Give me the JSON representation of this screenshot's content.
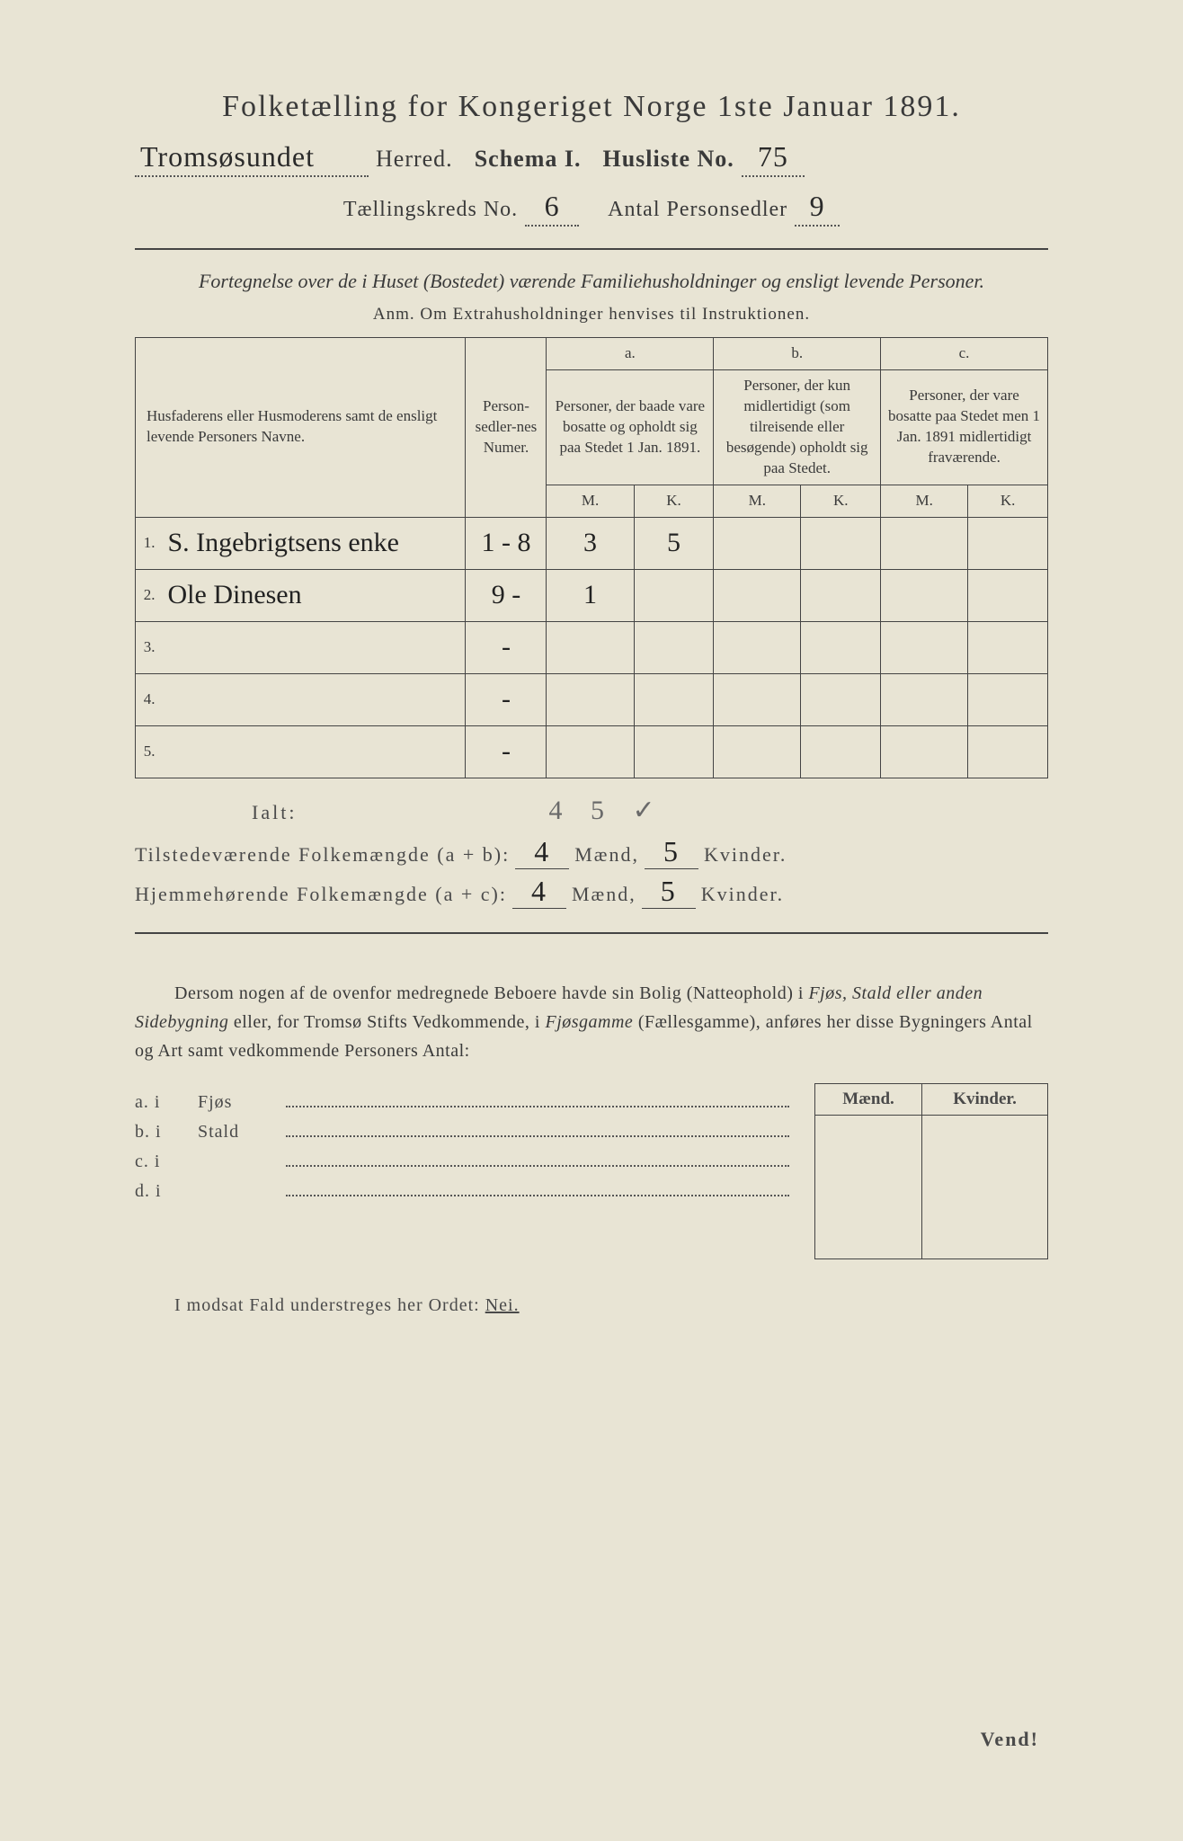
{
  "title": "Folketælling for Kongeriget Norge 1ste Januar 1891.",
  "header": {
    "herred_value": "Tromsøsundet",
    "herred_label": "Herred.",
    "schema_label": "Schema I.",
    "husliste_label": "Husliste No.",
    "husliste_value": "75",
    "taellingskreds_label": "Tællingskreds No.",
    "taellingskreds_value": "6",
    "antal_label": "Antal Personsedler",
    "antal_value": "9"
  },
  "subhead": "Fortegnelse over de i Huset (Bostedet) værende Familiehusholdninger og ensligt levende Personer.",
  "anm": "Anm.  Om Extrahusholdninger henvises til Instruktionen.",
  "table": {
    "col_name": "Husfaderens eller Husmoderens samt de ensligt levende Personers Navne.",
    "col_num": "Person-sedler-nes Numer.",
    "col_a_label": "a.",
    "col_a": "Personer, der baade vare bosatte og opholdt sig paa Stedet 1 Jan. 1891.",
    "col_b_label": "b.",
    "col_b": "Personer, der kun midlertidigt (som tilreisende eller besøgende) opholdt sig paa Stedet.",
    "col_c_label": "c.",
    "col_c": "Personer, der vare bosatte paa Stedet men 1 Jan. 1891 midlertidigt fraværende.",
    "mk_m": "M.",
    "mk_k": "K.",
    "rows": [
      {
        "n": "1.",
        "name": "S. Ingebrigtsens enke",
        "num": "1 - 8",
        "am": "3",
        "ak": "5",
        "bm": "",
        "bk": "",
        "cm": "",
        "ck": ""
      },
      {
        "n": "2.",
        "name": "Ole Dinesen",
        "num": "9 -",
        "am": "1",
        "ak": "",
        "bm": "",
        "bk": "",
        "cm": "",
        "ck": ""
      },
      {
        "n": "3.",
        "name": "",
        "num": "-",
        "am": "",
        "ak": "",
        "bm": "",
        "bk": "",
        "cm": "",
        "ck": ""
      },
      {
        "n": "4.",
        "name": "",
        "num": "-",
        "am": "",
        "ak": "",
        "bm": "",
        "bk": "",
        "cm": "",
        "ck": ""
      },
      {
        "n": "5.",
        "name": "",
        "num": "-",
        "am": "",
        "ak": "",
        "bm": "",
        "bk": "",
        "cm": "",
        "ck": ""
      }
    ]
  },
  "ialt": {
    "label": "Ialt:",
    "hand": "4  5 ✓"
  },
  "sums": {
    "present_label": "Tilstedeværende Folkemængde (a + b):",
    "present_m": "4",
    "present_k": "5",
    "home_label": "Hjemmehørende Folkemængde (a + c):",
    "home_m": "4",
    "home_k": "5",
    "maend": "Mænd,",
    "kvinder": "Kvinder."
  },
  "bodytext": {
    "t1": "Dersom nogen af de ovenfor medregnede Beboere havde sin Bolig (Natteophold) i ",
    "em1": "Fjøs, Stald eller anden Sidebygning",
    "t2": " eller, for Tromsø Stifts Vedkommende, i ",
    "em2": "Fjøsgamme",
    "t3": " (Fællesgamme), anføres her disse Bygningers Antal og Art samt vedkommende Personers Antal:"
  },
  "outbuildings": {
    "rows": [
      {
        "k": "a.  i",
        "label": "Fjøs"
      },
      {
        "k": "b.  i",
        "label": "Stald"
      },
      {
        "k": "c.  i",
        "label": ""
      },
      {
        "k": "d.  i",
        "label": ""
      }
    ],
    "mk_m": "Mænd.",
    "mk_k": "Kvinder."
  },
  "footer": {
    "text": "I modsat Fald understreges her Ordet: ",
    "nei": "Nei."
  },
  "vend": "Vend!"
}
